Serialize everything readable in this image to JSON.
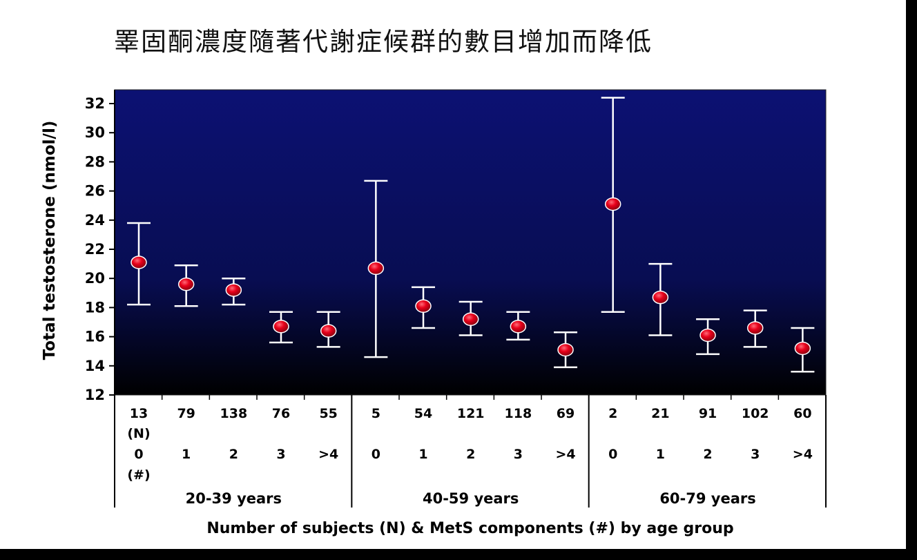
{
  "title": "睪固酮濃度隨著代謝症候群的數目增加而降低",
  "chart_data": {
    "type": "scatter",
    "ylabel": "Total testosterone (nmol/l)",
    "xlabel": "Number of subjects (N) & MetS components (#) by age group",
    "ylim": [
      12,
      32
    ],
    "yticks": [
      "12",
      "14",
      "16",
      "18",
      "20",
      "22",
      "24",
      "26",
      "28",
      "30",
      "32"
    ],
    "row_labels": {
      "n": "(N)",
      "components": "(#)"
    },
    "groups": [
      {
        "label": "20-39 years",
        "points": [
          {
            "n": "13",
            "components": "0",
            "mean": 21.1,
            "low": 18.2,
            "high": 23.8
          },
          {
            "n": "79",
            "components": "1",
            "mean": 19.6,
            "low": 18.1,
            "high": 20.9
          },
          {
            "n": "138",
            "components": "2",
            "mean": 19.2,
            "low": 18.2,
            "high": 20.0
          },
          {
            "n": "76",
            "components": "3",
            "mean": 16.7,
            "low": 15.6,
            "high": 17.7
          },
          {
            "n": "55",
            "components": ">4",
            "mean": 16.4,
            "low": 15.3,
            "high": 17.7
          }
        ]
      },
      {
        "label": "40-59 years",
        "points": [
          {
            "n": "5",
            "components": "0",
            "mean": 20.7,
            "low": 14.6,
            "high": 26.7
          },
          {
            "n": "54",
            "components": "1",
            "mean": 18.1,
            "low": 16.6,
            "high": 19.4
          },
          {
            "n": "121",
            "components": "2",
            "mean": 17.2,
            "low": 16.1,
            "high": 18.4
          },
          {
            "n": "118",
            "components": "3",
            "mean": 16.7,
            "low": 15.8,
            "high": 17.7
          },
          {
            "n": "69",
            "components": ">4",
            "mean": 15.1,
            "low": 13.9,
            "high": 16.3
          }
        ]
      },
      {
        "label": "60-79 years",
        "points": [
          {
            "n": "2",
            "components": "0",
            "mean": 25.1,
            "low": 17.7,
            "high": 32.4
          },
          {
            "n": "21",
            "components": "1",
            "mean": 18.7,
            "low": 16.1,
            "high": 21.0
          },
          {
            "n": "91",
            "components": "2",
            "mean": 16.1,
            "low": 14.8,
            "high": 17.2
          },
          {
            "n": "102",
            "components": "3",
            "mean": 16.6,
            "low": 15.3,
            "high": 17.8
          },
          {
            "n": "60",
            "components": ">4",
            "mean": 15.2,
            "low": 13.6,
            "high": 16.6
          }
        ]
      }
    ],
    "colors": {
      "plot_bg_top": "#0c1173",
      "plot_bg_bottom": "#000000",
      "marker": "#e8001a",
      "errorbar": "#ffffff"
    }
  }
}
